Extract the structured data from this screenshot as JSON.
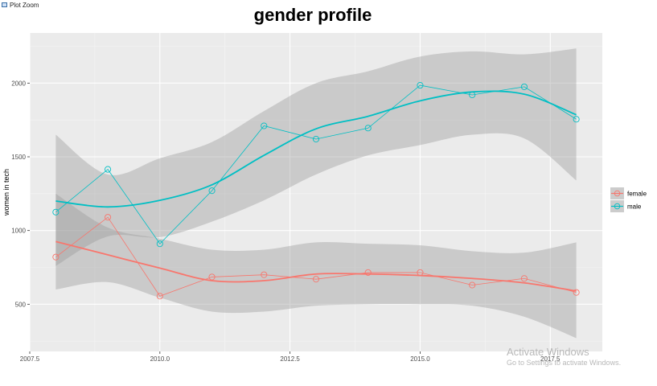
{
  "window": {
    "title": "Plot Zoom",
    "icon": "plot-zoom-icon"
  },
  "watermark": {
    "title": "Activate Windows",
    "subtitle": "Go to Settings to activate Windows."
  },
  "chart_data": {
    "type": "line",
    "title": "gender profile",
    "xlabel": "",
    "ylabel": "women in tech",
    "xlim": [
      2007.5,
      2018.5
    ],
    "ylim": [
      180,
      2340
    ],
    "xticks": [
      2007.5,
      2010.0,
      2012.5,
      2015.0,
      2017.5
    ],
    "xtick_labels": [
      "2007.5",
      "2010.0",
      "2012.5",
      "2015.0",
      "2017.5"
    ],
    "yticks": [
      500,
      1000,
      1500,
      2000
    ],
    "ytick_labels": [
      "500",
      "1000",
      "1500",
      "2000"
    ],
    "grid": true,
    "legend": "right",
    "x": [
      2008,
      2009,
      2010,
      2011,
      2012,
      2013,
      2014,
      2015,
      2016,
      2017,
      2018
    ],
    "series": [
      {
        "name": "female",
        "color": "#f8766d",
        "values": [
          820,
          1090,
          555,
          685,
          700,
          670,
          715,
          715,
          630,
          675,
          580
        ],
        "smooth": [
          925,
          835,
          745,
          660,
          660,
          705,
          705,
          695,
          675,
          645,
          590
        ],
        "ci_low": [
          600,
          650,
          545,
          450,
          450,
          490,
          500,
          500,
          490,
          415,
          270
        ],
        "ci_high": [
          1250,
          1020,
          945,
          870,
          870,
          920,
          910,
          900,
          860,
          850,
          920
        ]
      },
      {
        "name": "male",
        "color": "#00bfc4",
        "values": [
          1125,
          1415,
          910,
          1270,
          1710,
          1620,
          1695,
          1985,
          1920,
          1975,
          1755
        ],
        "smooth": [
          1200,
          1160,
          1205,
          1310,
          1510,
          1690,
          1775,
          1880,
          1940,
          1925,
          1785
        ],
        "ci_low": [
          760,
          960,
          955,
          1060,
          1205,
          1380,
          1510,
          1580,
          1650,
          1625,
          1340
        ],
        "ci_high": [
          1650,
          1380,
          1490,
          1600,
          1810,
          2000,
          2080,
          2180,
          2215,
          2195,
          2235
        ]
      }
    ]
  }
}
